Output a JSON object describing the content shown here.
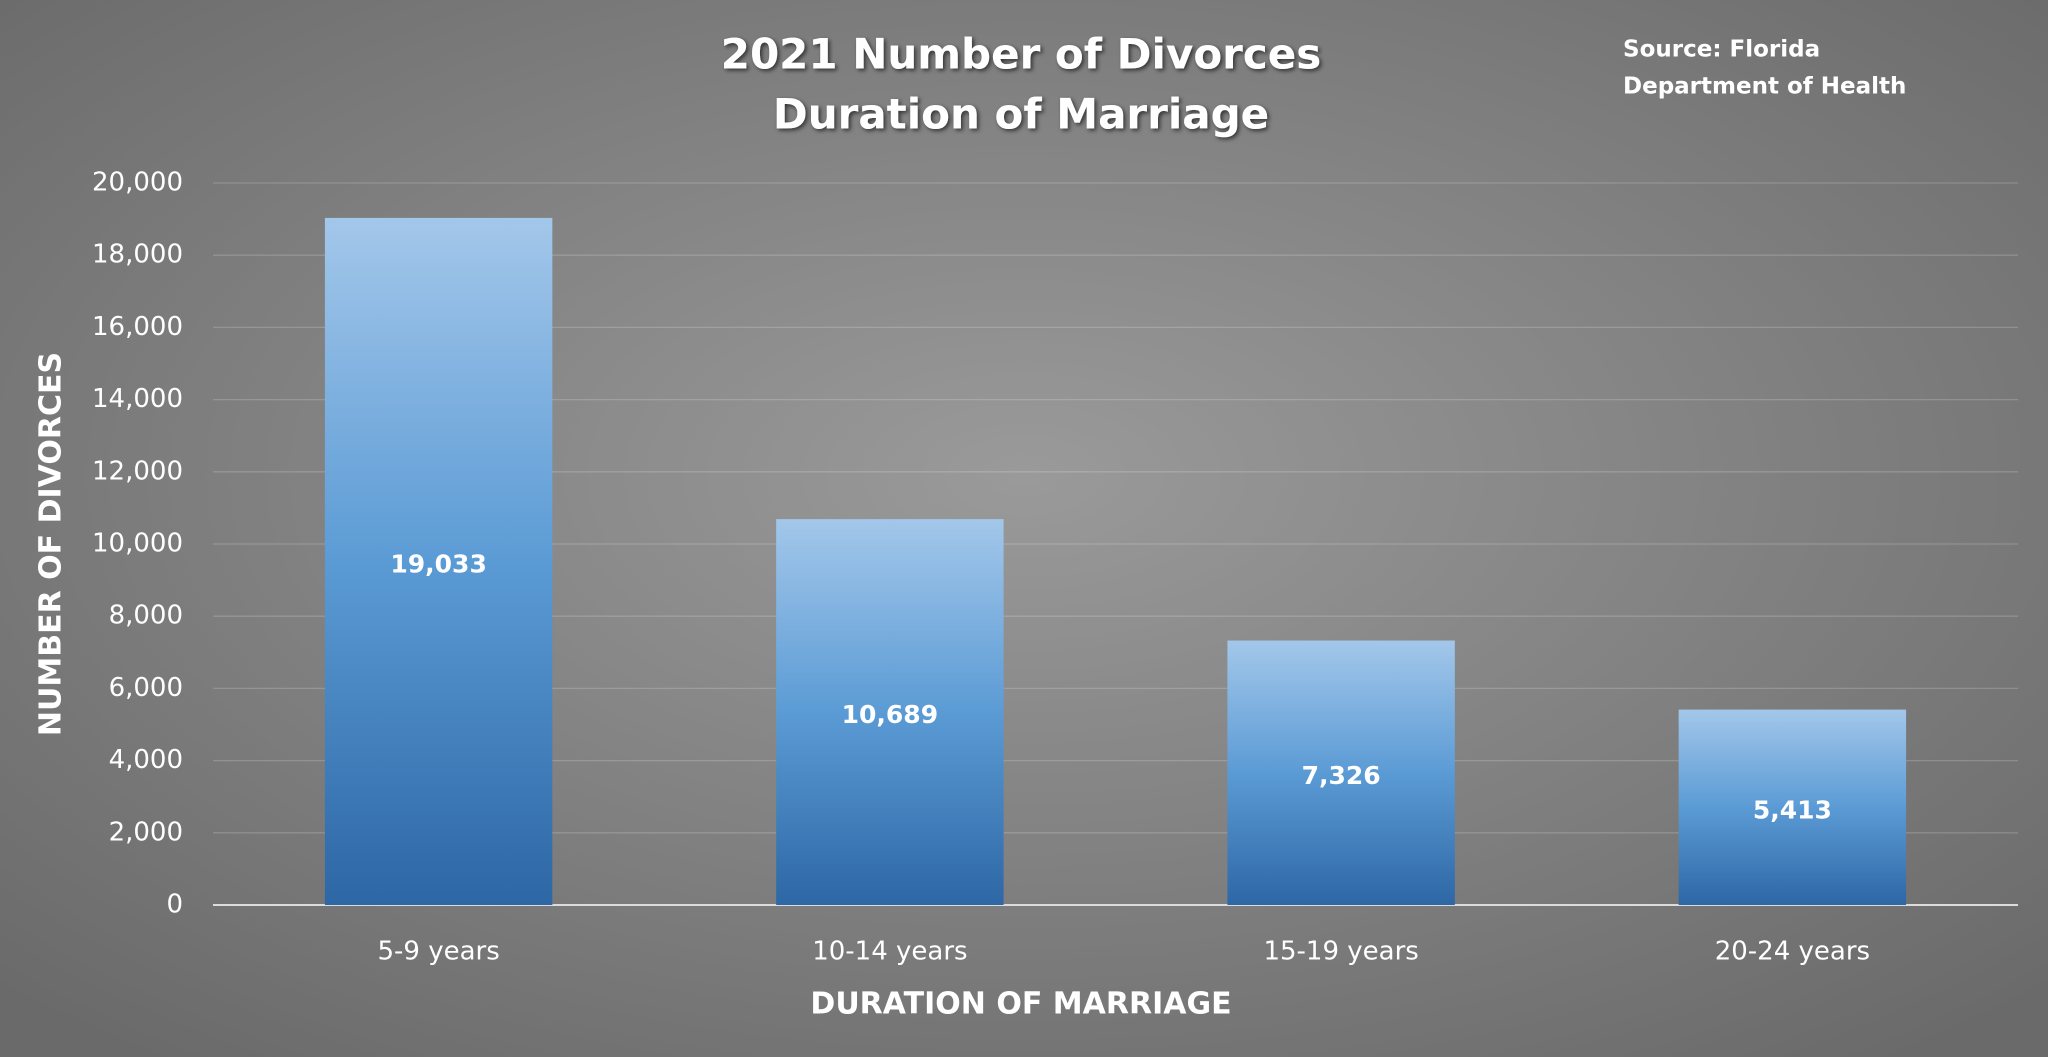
{
  "chart_data": {
    "type": "bar",
    "title": [
      "2021 Number of Divorces",
      "Duration of Marriage"
    ],
    "source": [
      "Source: Florida",
      "Department of Health"
    ],
    "x_label": "DURATION OF MARRIAGE",
    "y_label": "NUMBER OF DIVORCES",
    "categories": [
      "5-9 years",
      "10-14 years",
      "15-19 years",
      "20-24 years"
    ],
    "values": [
      19033,
      10689,
      7326,
      5413
    ],
    "value_labels": [
      "19,033",
      "10,689",
      "7,326",
      "5,413"
    ],
    "color": "#5b9bd5",
    "ylim": [
      0,
      20000
    ],
    "yticks": [
      0,
      {
        "value": 2000,
        "label": "2,000"
      },
      {
        "value": 4000,
        "label": "4,000"
      },
      {
        "value": 6000,
        "label": "6,000"
      },
      {
        "value": 8000,
        "label": "8,000"
      },
      {
        "value": 10000,
        "label": "10,000"
      },
      {
        "value": 12000,
        "label": "12,000"
      },
      {
        "value": 14000,
        "label": "14,000"
      },
      {
        "value": 16000,
        "label": "16,000"
      },
      {
        "value": 18000,
        "label": "18,000"
      },
      {
        "value": 20000,
        "label": "20,000"
      }
    ],
    "grid": true
  }
}
